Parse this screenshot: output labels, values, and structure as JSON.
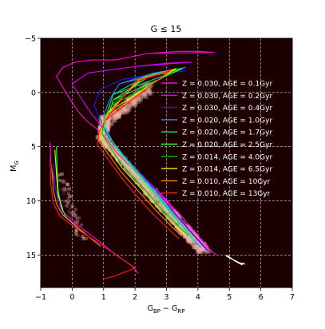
{
  "chart_data": {
    "type": "line",
    "title": "G ≤ 15",
    "xlabel": "G_BP − G_RP",
    "ylabel": "M_G",
    "xlim": [
      -1,
      7
    ],
    "ylim": [
      18,
      -5
    ],
    "x_ticks": [
      -1,
      0,
      1,
      2,
      3,
      4,
      5,
      6,
      7
    ],
    "x_tick_labels": [
      "−1",
      "0",
      "1",
      "2",
      "3",
      "4",
      "5",
      "6",
      "7"
    ],
    "y_ticks": [
      -5,
      0,
      5,
      10,
      15
    ],
    "y_tick_labels": [
      "−5",
      "0",
      "5",
      "10",
      "15"
    ],
    "background_color": "#1c0000",
    "grid": true,
    "legend_position": "right",
    "density_color": "#f2b5ad",
    "series": [
      {
        "name": "Z = 0.030, AGE = 0.1Gyr",
        "color": "#ff00d4",
        "points": [
          [
            2.4,
            -3.6
          ],
          [
            3.4,
            -3.8
          ],
          [
            4.0,
            -3.8
          ],
          [
            4.5,
            -3.7
          ],
          [
            2.4,
            -3.6
          ],
          [
            1.4,
            -3.0
          ],
          [
            0.6,
            -3.0
          ],
          [
            0.1,
            -2.8
          ],
          [
            -0.3,
            -2.3
          ],
          [
            -0.5,
            -1.5
          ],
          [
            -0.2,
            0.0
          ],
          [
            0.15,
            1.6
          ],
          [
            0.45,
            2.6
          ],
          [
            0.8,
            3.4
          ],
          [
            1.1,
            4.3
          ],
          [
            1.4,
            5.5
          ],
          [
            1.8,
            6.7
          ],
          [
            2.3,
            8.0
          ],
          [
            2.9,
            9.6
          ],
          [
            3.5,
            11.5
          ],
          [
            4.0,
            13.2
          ],
          [
            4.4,
            14.6
          ],
          [
            4.6,
            15.0
          ]
        ]
      },
      {
        "name": "Z = 0.030, AGE = 0.2Gyr",
        "color": "#cc00ff",
        "points": [
          [
            2.0,
            -2.4
          ],
          [
            3.0,
            -2.7
          ],
          [
            3.8,
            -2.8
          ],
          [
            2.0,
            -2.4
          ],
          [
            0.5,
            -1.8
          ],
          [
            0.0,
            -0.8
          ],
          [
            0.3,
            0.6
          ],
          [
            0.6,
            1.9
          ],
          [
            0.9,
            3.0
          ],
          [
            1.2,
            4.3
          ],
          [
            1.6,
            5.8
          ],
          [
            2.1,
            7.3
          ],
          [
            2.7,
            9.0
          ],
          [
            3.3,
            11.2
          ],
          [
            3.9,
            13.2
          ],
          [
            4.4,
            14.8
          ]
        ]
      },
      {
        "name": "Z = 0.030, AGE = 0.4Gyr",
        "color": "#1a1aff",
        "points": [
          [
            1.6,
            -1.2
          ],
          [
            2.6,
            -1.7
          ],
          [
            3.6,
            -2.0
          ],
          [
            1.6,
            -1.2
          ],
          [
            0.9,
            -0.3
          ],
          [
            0.7,
            1.2
          ],
          [
            0.9,
            2.5
          ],
          [
            1.1,
            3.8
          ],
          [
            1.5,
            5.4
          ],
          [
            2.0,
            7.0
          ],
          [
            2.6,
            8.8
          ],
          [
            3.2,
            11.0
          ],
          [
            3.8,
            13.0
          ],
          [
            4.3,
            14.6
          ]
        ]
      },
      {
        "name": "Z = 0.020, AGE = 1.0Gyr",
        "color": "#1e90ff",
        "points": [
          [
            1.5,
            -0.8
          ],
          [
            2.6,
            -1.8
          ],
          [
            3.6,
            -2.3
          ],
          [
            1.5,
            -0.8
          ],
          [
            1.2,
            0.6
          ],
          [
            1.0,
            2.1
          ],
          [
            1.05,
            3.2
          ],
          [
            1.3,
            4.6
          ],
          [
            1.8,
            6.4
          ],
          [
            2.4,
            8.3
          ],
          [
            3.0,
            10.5
          ],
          [
            3.6,
            12.6
          ],
          [
            4.1,
            14.3
          ]
        ]
      },
      {
        "name": "Z = 0.020, AGE = 1.7Gyr",
        "color": "#00e0a0",
        "points": [
          [
            1.3,
            0.2
          ],
          [
            2.4,
            -1.6
          ],
          [
            3.5,
            -2.2
          ],
          [
            1.3,
            0.2
          ],
          [
            1.15,
            1.5
          ],
          [
            1.0,
            2.8
          ],
          [
            1.15,
            4.0
          ],
          [
            1.6,
            5.8
          ],
          [
            2.2,
            7.8
          ],
          [
            2.8,
            9.9
          ],
          [
            3.4,
            12.0
          ],
          [
            3.9,
            13.8
          ]
        ]
      },
      {
        "name": "Z = 0.020, AGE = 2.5Gyr",
        "color": "#33ff33",
        "points": [
          [
            1.3,
            0.7
          ],
          [
            2.4,
            -1.4
          ],
          [
            3.5,
            -2.2
          ],
          [
            1.3,
            0.7
          ],
          [
            1.15,
            2.2
          ],
          [
            1.0,
            3.4
          ],
          [
            1.2,
            4.6
          ],
          [
            1.7,
            6.3
          ],
          [
            2.3,
            8.3
          ],
          [
            2.9,
            10.4
          ],
          [
            3.5,
            12.4
          ],
          [
            3.9,
            13.6
          ]
        ]
      },
      {
        "name": "Z = 0.014, AGE = 4.0Gyr",
        "color": "#00bb00",
        "points": [
          [
            1.2,
            1.3
          ],
          [
            2.3,
            -1.4
          ],
          [
            3.4,
            -2.2
          ],
          [
            1.2,
            1.3
          ],
          [
            1.0,
            2.6
          ],
          [
            0.95,
            3.8
          ],
          [
            1.2,
            5.0
          ],
          [
            1.6,
            6.7
          ],
          [
            2.2,
            8.6
          ],
          [
            2.8,
            10.6
          ],
          [
            3.4,
            12.4
          ],
          [
            3.7,
            13.2
          ]
        ]
      },
      {
        "name": "Z = 0.014, AGE = 6.5Gyr",
        "color": "#ccff00",
        "points": [
          [
            1.15,
            1.8
          ],
          [
            2.2,
            -1.3
          ],
          [
            3.3,
            -2.2
          ],
          [
            1.15,
            1.8
          ],
          [
            0.95,
            3.0
          ],
          [
            0.9,
            4.2
          ],
          [
            1.2,
            5.4
          ],
          [
            1.6,
            7.0
          ],
          [
            2.2,
            8.9
          ],
          [
            2.8,
            10.9
          ],
          [
            3.3,
            12.4
          ],
          [
            3.6,
            13.2
          ]
        ]
      },
      {
        "name": "Z = 0.010, AGE = 10Gyr",
        "color": "#ff8800",
        "points": [
          [
            1.1,
            2.2
          ],
          [
            2.1,
            -1.2
          ],
          [
            3.2,
            -2.1
          ],
          [
            1.1,
            2.2
          ],
          [
            0.9,
            3.4
          ],
          [
            0.85,
            4.5
          ],
          [
            1.15,
            5.7
          ],
          [
            1.55,
            7.3
          ],
          [
            2.1,
            9.1
          ],
          [
            2.7,
            11.0
          ],
          [
            3.2,
            12.5
          ],
          [
            3.5,
            13.3
          ]
        ]
      },
      {
        "name": "Z = 0.010, AGE = 13Gyr",
        "color": "#ff1a1a",
        "points": [
          [
            1.05,
            2.6
          ],
          [
            2.0,
            -1.0
          ],
          [
            3.1,
            -2.0
          ],
          [
            1.05,
            2.6
          ],
          [
            0.85,
            3.7
          ],
          [
            0.8,
            4.8
          ],
          [
            1.1,
            6.0
          ],
          [
            1.5,
            7.6
          ],
          [
            2.0,
            9.4
          ],
          [
            2.6,
            11.3
          ],
          [
            3.1,
            12.7
          ],
          [
            3.4,
            13.5
          ]
        ]
      }
    ],
    "white_dwarf_tracks": [
      {
        "color": "#ff00d4",
        "points": [
          [
            -0.7,
            4.6
          ],
          [
            -0.68,
            6.5
          ],
          [
            -0.55,
            8.5
          ],
          [
            -0.45,
            10.0
          ],
          [
            -0.3,
            11.0
          ],
          [
            0.2,
            12.3
          ],
          [
            0.8,
            13.6
          ],
          [
            1.3,
            14.8
          ],
          [
            1.9,
            16.0
          ],
          [
            2.1,
            16.7
          ]
        ]
      },
      {
        "color": "#1a1aff",
        "points": [
          [
            -0.6,
            6.5
          ],
          [
            -0.55,
            8.5
          ],
          [
            -0.45,
            10.0
          ],
          [
            -0.3,
            11.2
          ],
          [
            0.2,
            12.5
          ]
        ]
      },
      {
        "color": "#33ff33",
        "points": [
          [
            -0.5,
            5.0
          ],
          [
            -0.48,
            7.0
          ],
          [
            -0.45,
            9.0
          ],
          [
            -0.35,
            10.5
          ],
          [
            -0.2,
            11.5
          ],
          [
            0.3,
            12.8
          ]
        ]
      },
      {
        "color": "#ccff00",
        "points": [
          [
            -0.55,
            5.3
          ],
          [
            -0.5,
            7.5
          ],
          [
            -0.45,
            9.5
          ],
          [
            -0.3,
            10.8
          ]
        ]
      },
      {
        "color": "#ff8800",
        "points": [
          [
            -0.65,
            7.0
          ],
          [
            -0.6,
            9.0
          ],
          [
            -0.5,
            10.3
          ],
          [
            -0.3,
            11.3
          ],
          [
            0.4,
            13.0
          ],
          [
            0.9,
            14.2
          ]
        ]
      },
      {
        "color": "#ff1a1a",
        "points": [
          [
            -0.7,
            6.0
          ],
          [
            -0.68,
            8.5
          ],
          [
            -0.6,
            10.2
          ],
          [
            -0.4,
            11.4
          ],
          [
            0.2,
            12.7
          ],
          [
            0.9,
            14.0
          ],
          [
            1.4,
            15.0
          ],
          [
            2.0,
            16.2
          ],
          [
            1.3,
            17.0
          ],
          [
            1.0,
            17.2
          ]
        ]
      }
    ],
    "extra_segments": [
      {
        "color": "#ffffff",
        "points": [
          [
            4.9,
            15.0
          ],
          [
            5.2,
            15.6
          ],
          [
            5.4,
            15.9
          ],
          [
            5.45,
            15.7
          ]
        ]
      },
      {
        "color": "#ffffff",
        "points": [
          [
            4.9,
            15.1
          ],
          [
            5.3,
            15.7
          ],
          [
            5.5,
            15.85
          ]
        ]
      }
    ]
  }
}
